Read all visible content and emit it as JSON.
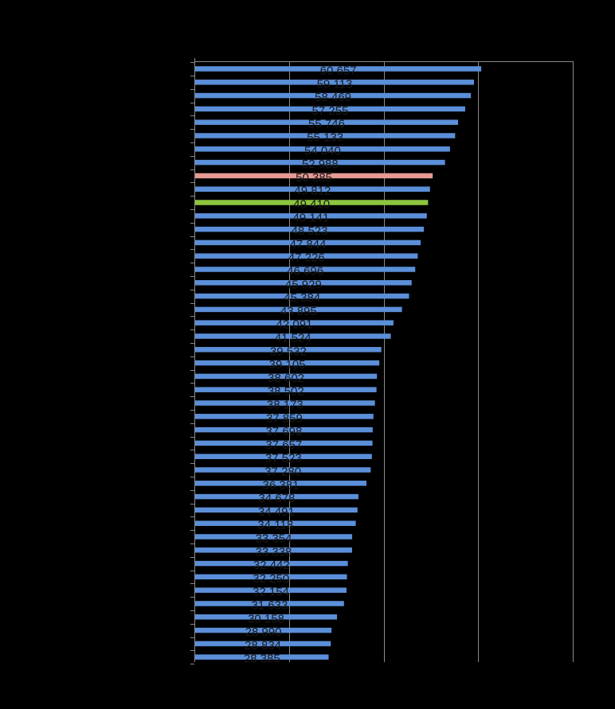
{
  "chart_data": {
    "type": "bar",
    "orientation": "horizontal",
    "xlim": [
      0,
      80000
    ],
    "x_gridlines": [
      20000,
      40000,
      60000,
      80000
    ],
    "grid": true,
    "legend": "none",
    "title": "",
    "xlabel": "",
    "ylabel": "",
    "colors": {
      "default": "#5b8fd9",
      "highlight_pink": "#e59a94",
      "highlight_green": "#8cc63f",
      "background": "#000000",
      "label": "#1a1a1a",
      "grid": "#8a8a8a"
    },
    "bars": [
      {
        "value": 60657,
        "label": "60 657",
        "color": "default"
      },
      {
        "value": 59113,
        "label": "59 113",
        "color": "default"
      },
      {
        "value": 58469,
        "label": "58 469",
        "color": "default"
      },
      {
        "value": 57255,
        "label": "57 255",
        "color": "default"
      },
      {
        "value": 55746,
        "label": "55 746",
        "color": "default"
      },
      {
        "value": 55133,
        "label": "55 133",
        "color": "default"
      },
      {
        "value": 54040,
        "label": "54 040",
        "color": "default"
      },
      {
        "value": 52988,
        "label": "52 988",
        "color": "default"
      },
      {
        "value": 50385,
        "label": "50 385",
        "color": "highlight_pink"
      },
      {
        "value": 49812,
        "label": "49 812",
        "color": "default"
      },
      {
        "value": 49410,
        "label": "49 410",
        "color": "highlight_green"
      },
      {
        "value": 49141,
        "label": "49 141",
        "color": "default"
      },
      {
        "value": 48523,
        "label": "48 523",
        "color": "default"
      },
      {
        "value": 47844,
        "label": "47 844",
        "color": "default"
      },
      {
        "value": 47226,
        "label": "47 226",
        "color": "default"
      },
      {
        "value": 46696,
        "label": "46 696",
        "color": "default"
      },
      {
        "value": 45929,
        "label": "45 929",
        "color": "default"
      },
      {
        "value": 45384,
        "label": "45 384",
        "color": "default"
      },
      {
        "value": 43895,
        "label": "43 895",
        "color": "default"
      },
      {
        "value": 42091,
        "label": "42 091",
        "color": "default"
      },
      {
        "value": 41524,
        "label": "41 524",
        "color": "default"
      },
      {
        "value": 39532,
        "label": "39 532",
        "color": "default"
      },
      {
        "value": 39105,
        "label": "39 105",
        "color": "default"
      },
      {
        "value": 38602,
        "label": "38 602",
        "color": "default"
      },
      {
        "value": 38502,
        "label": "38 502",
        "color": "default"
      },
      {
        "value": 38173,
        "label": "38 173",
        "color": "default"
      },
      {
        "value": 37859,
        "label": "37 859",
        "color": "default"
      },
      {
        "value": 37698,
        "label": "37 698",
        "color": "default"
      },
      {
        "value": 37657,
        "label": "37 657",
        "color": "default"
      },
      {
        "value": 37523,
        "label": "37 523",
        "color": "default"
      },
      {
        "value": 37280,
        "label": "37 280",
        "color": "default"
      },
      {
        "value": 36381,
        "label": "36 381",
        "color": "default"
      },
      {
        "value": 34678,
        "label": "34 678",
        "color": "default"
      },
      {
        "value": 34491,
        "label": "34 491",
        "color": "default"
      },
      {
        "value": 34118,
        "label": "34 118",
        "color": "default"
      },
      {
        "value": 33354,
        "label": "33 354",
        "color": "default"
      },
      {
        "value": 33338,
        "label": "33 338",
        "color": "default"
      },
      {
        "value": 32442,
        "label": "32 442",
        "color": "default"
      },
      {
        "value": 32250,
        "label": "32 250",
        "color": "default"
      },
      {
        "value": 32154,
        "label": "32 154",
        "color": "default"
      },
      {
        "value": 31633,
        "label": "31 633",
        "color": "default"
      },
      {
        "value": 30158,
        "label": "30 158",
        "color": "default"
      },
      {
        "value": 28990,
        "label": "28 990",
        "color": "default"
      },
      {
        "value": 28834,
        "label": "28 834",
        "color": "default"
      },
      {
        "value": 28385,
        "label": "28 385",
        "color": "default"
      }
    ]
  }
}
